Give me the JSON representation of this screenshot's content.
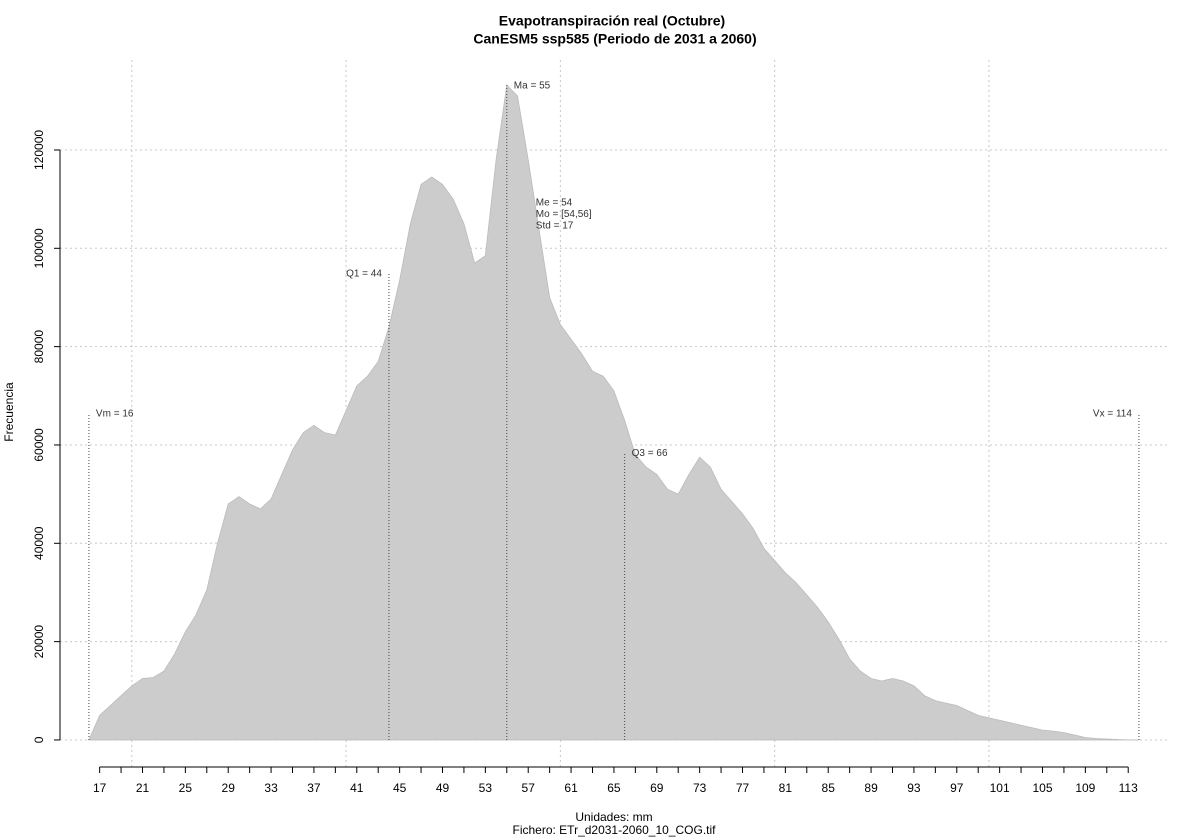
{
  "chart_data": {
    "type": "area",
    "title": "Evapotranspiración real (Octubre)",
    "subtitle": "CanESM5 ssp585 (Periodo de 2031 a 2060)",
    "x_label": "Unidades: mm",
    "caption": "Fichero: ETr_d2031-2060_10_COG.tif",
    "y_label": "Frecuencia",
    "color": "#cccccc",
    "grid": true,
    "x": [
      16,
      17,
      18,
      19,
      20,
      21,
      22,
      23,
      24,
      25,
      26,
      27,
      28,
      29,
      30,
      31,
      32,
      33,
      34,
      35,
      36,
      37,
      38,
      39,
      40,
      41,
      42,
      43,
      44,
      45,
      46,
      47,
      48,
      49,
      50,
      51,
      52,
      53,
      54,
      55,
      56,
      57,
      58,
      59,
      60,
      61,
      62,
      63,
      64,
      65,
      66,
      67,
      68,
      69,
      70,
      71,
      72,
      73,
      74,
      75,
      76,
      77,
      78,
      79,
      80,
      81,
      82,
      83,
      84,
      85,
      86,
      87,
      88,
      89,
      90,
      91,
      92,
      93,
      94,
      95,
      96,
      97,
      98,
      99,
      100,
      101,
      102,
      103,
      104,
      105,
      106,
      107,
      108,
      109,
      110,
      111,
      112,
      113,
      114
    ],
    "values": [
      0,
      5000,
      7000,
      9000,
      11000,
      12500,
      12700,
      14000,
      17500,
      22000,
      25500,
      30500,
      40000,
      48000,
      49500,
      48000,
      47000,
      49000,
      54000,
      59000,
      62500,
      64000,
      62500,
      62000,
      67000,
      72000,
      74000,
      77000,
      84000,
      93500,
      105000,
      113000,
      114500,
      113000,
      110000,
      105000,
      97000,
      98500,
      118000,
      133200,
      131000,
      118000,
      104000,
      90000,
      84500,
      81500,
      78500,
      75000,
      74000,
      71000,
      65000,
      58000,
      55500,
      54000,
      51000,
      50000,
      54000,
      57500,
      55500,
      51000,
      48500,
      46000,
      43000,
      39000,
      36500,
      34000,
      32000,
      29500,
      27000,
      24000,
      20500,
      16500,
      14000,
      12500,
      12000,
      12500,
      12000,
      11000,
      9000,
      8000,
      7500,
      7000,
      6000,
      5000,
      4500,
      4000,
      3500,
      3000,
      2500,
      2000,
      1800,
      1500,
      1000,
      500,
      300,
      200,
      100,
      0,
      0
    ],
    "xlim": [
      13.3,
      116.9
    ],
    "ylim": [
      -5500,
      138300
    ],
    "xticks": [
      17,
      21,
      25,
      29,
      33,
      37,
      41,
      45,
      49,
      53,
      57,
      61,
      65,
      69,
      73,
      77,
      81,
      85,
      89,
      93,
      97,
      101,
      105,
      109,
      113
    ],
    "xminorticks": [
      19,
      23,
      27,
      31,
      35,
      39,
      43,
      47,
      51,
      55,
      59,
      63,
      67,
      71,
      75,
      79,
      83,
      87,
      91,
      95,
      99,
      103,
      107,
      111
    ],
    "xgrid": [
      20,
      40,
      60,
      80,
      100
    ],
    "yticks": [
      0,
      20000,
      40000,
      60000,
      80000,
      100000,
      120000
    ],
    "markers": [
      {
        "label": "Vm = 16",
        "x": 16,
        "top": 66500
      },
      {
        "label": "Q1 = 44",
        "x": 44,
        "top": 95000
      },
      {
        "label": "Ma = 55",
        "x": 55,
        "top": 133200
      },
      {
        "label": "Q3 = 66",
        "x": 66,
        "top": 58500
      },
      {
        "label": "Vx = 114",
        "x": 114,
        "top": 66500
      }
    ],
    "stats": [
      "Me = 54",
      "Mo = [54,56]",
      "Std = 17"
    ]
  }
}
